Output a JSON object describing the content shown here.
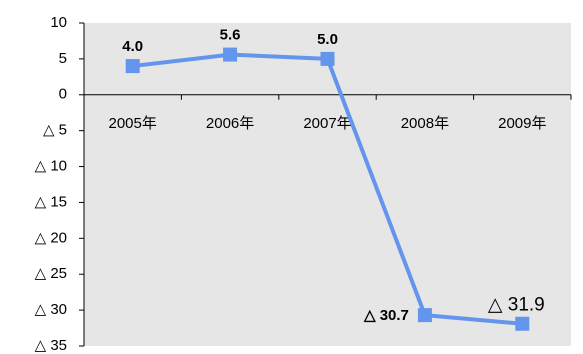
{
  "chart_data": {
    "type": "line",
    "title": "",
    "xlabel": "",
    "ylabel": "",
    "categories": [
      "2005年",
      "2006年",
      "2007年",
      "2008年",
      "2009年"
    ],
    "series": [
      {
        "values": [
          4.0,
          5.6,
          5.0,
          -30.7,
          -31.9
        ],
        "data_labels": [
          "4.0",
          "5.6",
          "5.0",
          "△ 30.7",
          "△ 31.9"
        ],
        "color": "#6495ED"
      }
    ],
    "ylim": [
      -35,
      10
    ],
    "y_ticks": [
      {
        "value": 10,
        "label": "10"
      },
      {
        "value": 5,
        "label": "5"
      },
      {
        "value": 0,
        "label": "0"
      },
      {
        "value": -5,
        "label": "△ 5"
      },
      {
        "value": -10,
        "label": "△ 10"
      },
      {
        "value": -15,
        "label": "△ 15"
      },
      {
        "value": -20,
        "label": "△ 20"
      },
      {
        "value": -25,
        "label": "△ 25"
      },
      {
        "value": -30,
        "label": "△ 30"
      },
      {
        "value": -35,
        "label": "△ 35"
      }
    ],
    "highlight_label_color": "#0000CC",
    "plot_background": "#E6E6E6",
    "grid": false,
    "legend": "none"
  }
}
